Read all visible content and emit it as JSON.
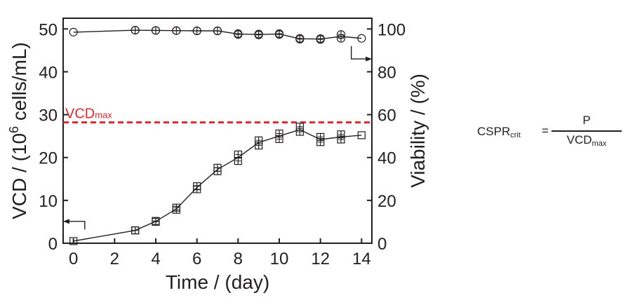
{
  "chart_data": {
    "type": "line",
    "xlabel": "Time / (day)",
    "ylabel_left_prefix": "VCD / (10",
    "ylabel_left_exp": "6",
    "ylabel_left_suffix": " cells/mL)",
    "ylabel_right": "Viability / (%)",
    "xlim": [
      -0.5,
      14.5
    ],
    "ylim_left": [
      0,
      52.5
    ],
    "ylim_right": [
      0,
      105
    ],
    "x_ticks": [
      0,
      2,
      4,
      6,
      8,
      10,
      12,
      14
    ],
    "y_left_ticks": [
      0,
      10,
      20,
      30,
      40,
      50
    ],
    "y_right_ticks": [
      0,
      20,
      40,
      60,
      80,
      100
    ],
    "series": [
      {
        "name": "VCD",
        "axis": "left",
        "marker": "square",
        "x": [
          0,
          3,
          4,
          5,
          6,
          7,
          8,
          9,
          10,
          11,
          12,
          13,
          14
        ],
        "values": [
          0.5,
          3.0,
          5.1,
          8.0,
          13.0,
          17.2,
          20.0,
          23.5,
          25.0,
          26.5,
          24.2,
          24.8,
          25.2
        ],
        "replicates": [
          [
            0.5
          ],
          [
            3.0,
            3.0
          ],
          [
            5.0,
            5.2
          ],
          [
            7.8,
            8.3
          ],
          [
            12.6,
            13.3
          ],
          [
            16.8,
            17.6
          ],
          [
            19.2,
            20.7
          ],
          [
            22.8,
            24.0
          ],
          [
            24.3,
            25.6
          ],
          [
            26.0,
            27.2
          ],
          [
            23.6,
            24.8
          ],
          [
            24.2,
            25.4
          ],
          [
            25.2
          ]
        ]
      },
      {
        "name": "Viability",
        "axis": "right",
        "marker": "circle",
        "x": [
          0,
          3,
          4,
          5,
          6,
          7,
          8,
          9,
          10,
          11,
          12,
          13,
          14
        ],
        "values": [
          98.5,
          99.4,
          99.3,
          99.2,
          99.1,
          99.1,
          97.6,
          97.4,
          97.6,
          95.4,
          95.3,
          96.5,
          95.6
        ],
        "replicates": [
          [
            98.5
          ],
          [
            99.4,
            99.4
          ],
          [
            99.3,
            99.3
          ],
          [
            99.2,
            99.2
          ],
          [
            99.1,
            99.1
          ],
          [
            99.1,
            99.1
          ],
          [
            97.4,
            97.8
          ],
          [
            97.2,
            97.6
          ],
          [
            97.4,
            97.8
          ],
          [
            95.2,
            95.6
          ],
          [
            95.1,
            95.5
          ],
          [
            95.6,
            97.4
          ],
          [
            95.6
          ]
        ]
      }
    ],
    "reference_line": {
      "label_main": "VCD",
      "label_sub": "max",
      "value": 28.2,
      "color": "#e0282a",
      "style": "dashed"
    },
    "annotations": [
      {
        "target": "VCD",
        "arrow": "left"
      },
      {
        "target": "Viability",
        "arrow": "right"
      }
    ]
  },
  "formula": {
    "lhs_main": "CSPR",
    "lhs_sub": "crit",
    "equals": "=",
    "numerator": "P",
    "denominator_main": "VCD",
    "denominator_sub": "max"
  },
  "colors": {
    "ink": "#231f20",
    "reference": "#e0282a"
  }
}
